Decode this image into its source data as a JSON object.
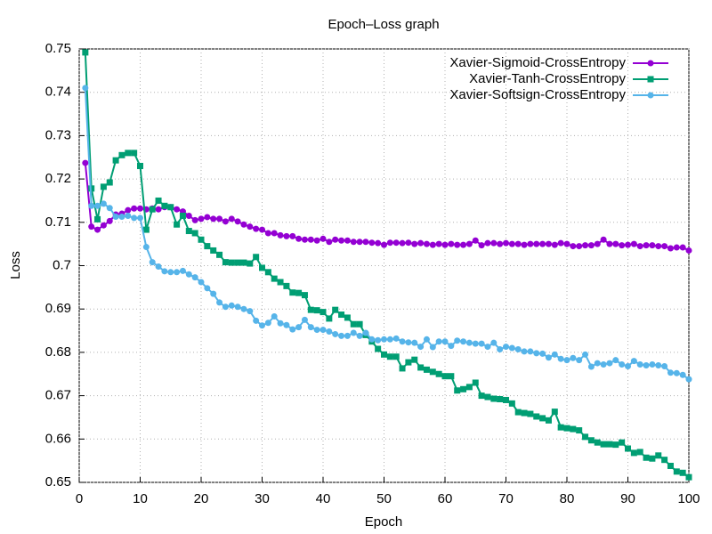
{
  "chart_data": {
    "type": "line",
    "title": "Epoch–Loss graph",
    "xlabel": "Epoch",
    "ylabel": "Loss",
    "xlim": [
      0,
      100
    ],
    "xticks": [
      0,
      10,
      20,
      30,
      40,
      50,
      60,
      70,
      80,
      90,
      100
    ],
    "ylim": [
      0.65,
      0.75
    ],
    "yticks": [
      0.65,
      0.66,
      0.67,
      0.68,
      0.69,
      0.7,
      0.71,
      0.72,
      0.73,
      0.74,
      0.75
    ],
    "grid": true,
    "legend": "top-right",
    "x": [
      1,
      2,
      3,
      4,
      5,
      6,
      7,
      8,
      9,
      10,
      11,
      12,
      13,
      14,
      15,
      16,
      17,
      18,
      19,
      20,
      21,
      22,
      23,
      24,
      25,
      26,
      27,
      28,
      29,
      30,
      31,
      32,
      33,
      34,
      35,
      36,
      37,
      38,
      39,
      40,
      41,
      42,
      43,
      44,
      45,
      46,
      47,
      48,
      49,
      50,
      51,
      52,
      53,
      54,
      55,
      56,
      57,
      58,
      59,
      60,
      61,
      62,
      63,
      64,
      65,
      66,
      67,
      68,
      69,
      70,
      71,
      72,
      73,
      74,
      75,
      76,
      77,
      78,
      79,
      80,
      81,
      82,
      83,
      84,
      85,
      86,
      87,
      88,
      89,
      90,
      91,
      92,
      93,
      94,
      95,
      96,
      97,
      98,
      99,
      100
    ],
    "series": [
      {
        "name": "Xavier-Sigmoid-CrossEntropy",
        "color": "#9400d3",
        "marker": "circle",
        "values": [
          0.7237,
          0.709,
          0.7083,
          0.7093,
          0.7103,
          0.7118,
          0.712,
          0.7128,
          0.7132,
          0.7132,
          0.713,
          0.7132,
          0.713,
          0.7135,
          0.7135,
          0.713,
          0.7125,
          0.7115,
          0.7105,
          0.7108,
          0.7112,
          0.7108,
          0.7108,
          0.7102,
          0.7108,
          0.7102,
          0.7095,
          0.709,
          0.7085,
          0.7083,
          0.7075,
          0.7075,
          0.707,
          0.7068,
          0.7068,
          0.7062,
          0.706,
          0.706,
          0.7058,
          0.7062,
          0.7055,
          0.706,
          0.7058,
          0.7058,
          0.7055,
          0.7055,
          0.7055,
          0.7053,
          0.7052,
          0.7048,
          0.7053,
          0.7053,
          0.7052,
          0.7053,
          0.705,
          0.7052,
          0.705,
          0.7048,
          0.705,
          0.7048,
          0.705,
          0.7048,
          0.7048,
          0.705,
          0.7058,
          0.7047,
          0.7052,
          0.7052,
          0.705,
          0.7052,
          0.705,
          0.705,
          0.7048,
          0.705,
          0.705,
          0.705,
          0.705,
          0.7048,
          0.7052,
          0.705,
          0.7045,
          0.7045,
          0.7047,
          0.7047,
          0.705,
          0.706,
          0.705,
          0.705,
          0.7047,
          0.7048,
          0.705,
          0.7045,
          0.7047,
          0.7047,
          0.7045,
          0.7045,
          0.704,
          0.7042,
          0.7042,
          0.7035
        ]
      },
      {
        "name": "Xavier-Tanh-CrossEntropy",
        "color": "#009e73",
        "marker": "square",
        "values": [
          0.7492,
          0.7178,
          0.7107,
          0.7182,
          0.7192,
          0.7243,
          0.7255,
          0.726,
          0.726,
          0.723,
          0.7083,
          0.713,
          0.715,
          0.7138,
          0.7135,
          0.7095,
          0.7115,
          0.708,
          0.7075,
          0.706,
          0.7045,
          0.7035,
          0.7025,
          0.7008,
          0.7007,
          0.7007,
          0.7007,
          0.7005,
          0.702,
          0.6995,
          0.6985,
          0.697,
          0.6962,
          0.6953,
          0.6938,
          0.6937,
          0.6932,
          0.6898,
          0.6897,
          0.6893,
          0.6878,
          0.6898,
          0.6887,
          0.688,
          0.6865,
          0.6865,
          0.684,
          0.6825,
          0.6808,
          0.6795,
          0.679,
          0.679,
          0.6763,
          0.6777,
          0.6783,
          0.6765,
          0.676,
          0.6755,
          0.675,
          0.6745,
          0.6745,
          0.6712,
          0.6715,
          0.672,
          0.673,
          0.67,
          0.6697,
          0.6693,
          0.6692,
          0.669,
          0.6682,
          0.6662,
          0.666,
          0.6658,
          0.6652,
          0.6648,
          0.6643,
          0.6663,
          0.6627,
          0.6625,
          0.6623,
          0.662,
          0.6605,
          0.6597,
          0.6592,
          0.6588,
          0.6588,
          0.6587,
          0.6592,
          0.6578,
          0.6568,
          0.657,
          0.6557,
          0.6555,
          0.6562,
          0.6552,
          0.6538,
          0.6525,
          0.6522,
          0.6512
        ]
      },
      {
        "name": "Xavier-Softsign-CrossEntropy",
        "color": "#56b4e9",
        "marker": "circle",
        "values": [
          0.741,
          0.7138,
          0.7138,
          0.7143,
          0.7133,
          0.7113,
          0.7113,
          0.7115,
          0.711,
          0.711,
          0.7043,
          0.7008,
          0.6998,
          0.6987,
          0.6985,
          0.6985,
          0.6988,
          0.698,
          0.6973,
          0.6962,
          0.6948,
          0.6935,
          0.6915,
          0.6905,
          0.6908,
          0.6905,
          0.69,
          0.6895,
          0.6873,
          0.6862,
          0.6868,
          0.6883,
          0.6867,
          0.6863,
          0.6853,
          0.6858,
          0.6875,
          0.6858,
          0.6852,
          0.6852,
          0.6848,
          0.6842,
          0.6838,
          0.6838,
          0.6845,
          0.6838,
          0.6845,
          0.683,
          0.6828,
          0.683,
          0.683,
          0.6832,
          0.6825,
          0.6823,
          0.6822,
          0.6813,
          0.683,
          0.6812,
          0.6825,
          0.6825,
          0.6815,
          0.6827,
          0.6825,
          0.6822,
          0.682,
          0.682,
          0.6813,
          0.6822,
          0.6807,
          0.6813,
          0.681,
          0.6807,
          0.6802,
          0.6802,
          0.6798,
          0.6797,
          0.6788,
          0.6795,
          0.6785,
          0.6782,
          0.6787,
          0.6782,
          0.6795,
          0.6767,
          0.6775,
          0.6772,
          0.6775,
          0.6782,
          0.6772,
          0.6768,
          0.678,
          0.6772,
          0.677,
          0.6772,
          0.677,
          0.6768,
          0.6753,
          0.6752,
          0.6748,
          0.6738
        ]
      }
    ]
  }
}
